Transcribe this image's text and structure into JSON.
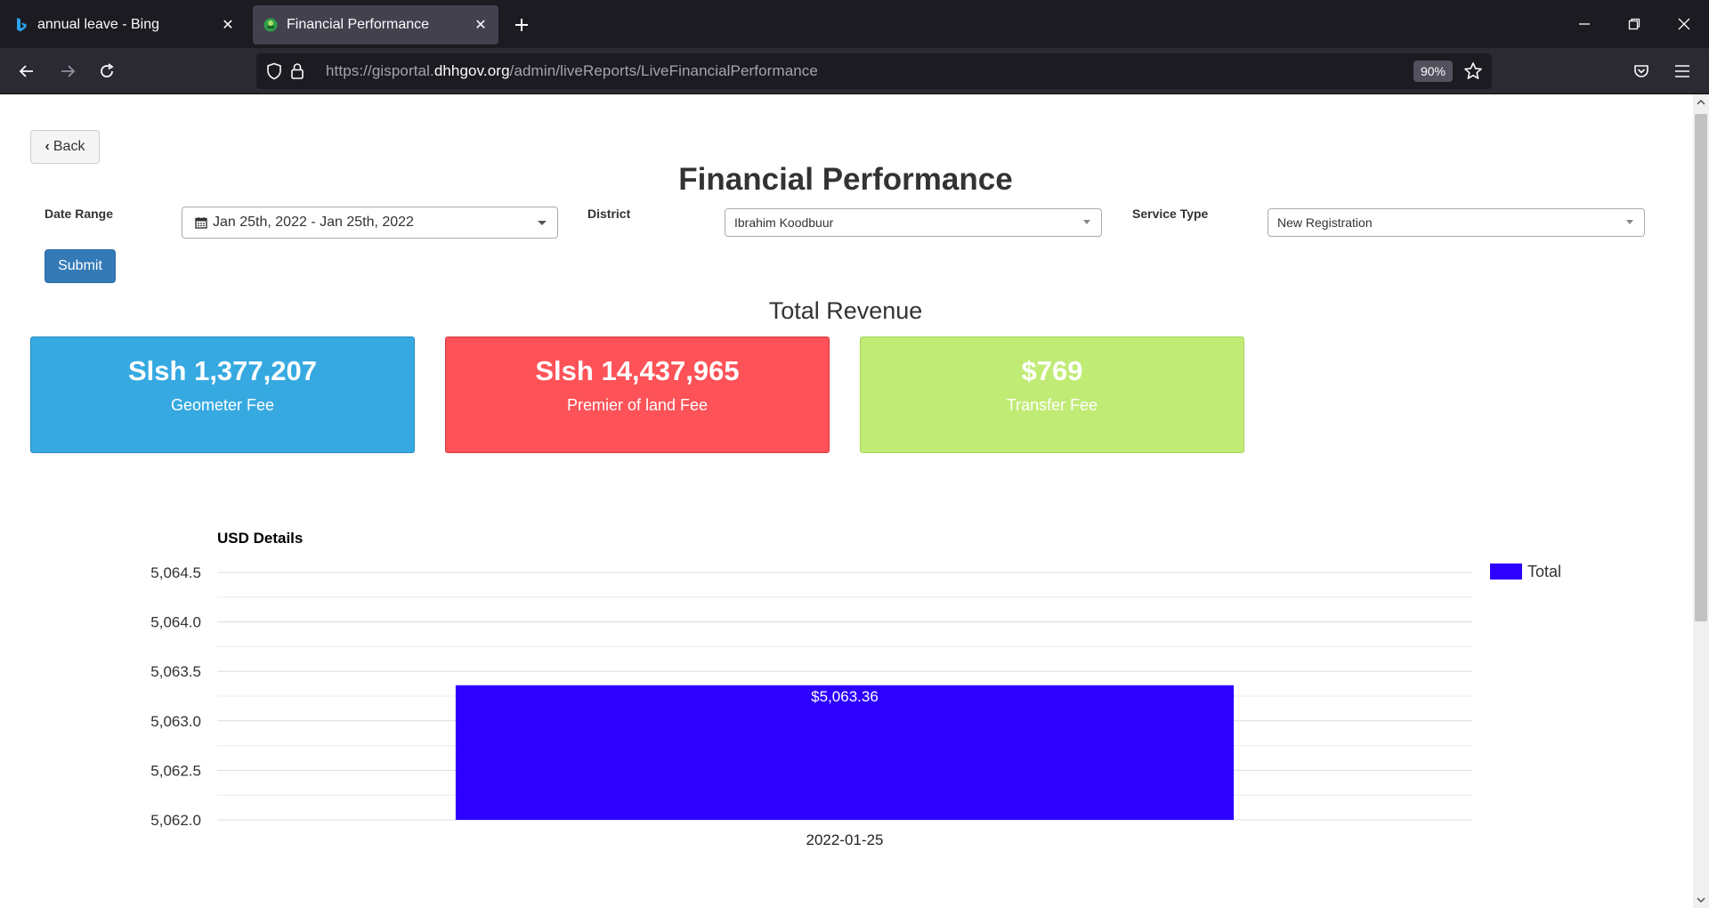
{
  "browser": {
    "tabs": [
      {
        "title": "annual leave - Bing",
        "favicon": "bing-icon",
        "active": false
      },
      {
        "title": "Financial Performance",
        "favicon": "site-icon",
        "active": true
      }
    ],
    "url": {
      "scheme": "https://gisportal.",
      "domain": "dhhgov.org",
      "path": "/admin/liveReports/LiveFinancialPerformance"
    },
    "zoom": "90%"
  },
  "page": {
    "back_label": "Back",
    "title": "Financial Performance",
    "filters": {
      "date_range_label": "Date Range",
      "date_range_value": "Jan 25th, 2022 - Jan 25th, 2022",
      "district_label": "District",
      "district_value": "Ibrahim Koodbuur",
      "service_type_label": "Service Type",
      "service_type_value": "New Registration"
    },
    "submit_label": "Submit",
    "total_revenue_title": "Total Revenue",
    "cards": [
      {
        "amount": "Slsh 1,377,207",
        "caption": "Geometer Fee",
        "color": "#36a9e1"
      },
      {
        "amount": "Slsh 14,437,965",
        "caption": "Premier of land Fee",
        "color": "#fd5257"
      },
      {
        "amount": "$769",
        "caption": "Transfer Fee",
        "color": "#c0eb75"
      }
    ]
  },
  "chart_data": {
    "type": "bar",
    "title": "USD Details",
    "categories": [
      "2022-01-25"
    ],
    "series": [
      {
        "name": "Total",
        "values": [
          5063.36
        ],
        "color": "#2d00ff"
      }
    ],
    "data_labels": [
      "$5,063.36"
    ],
    "ylim": [
      5062.0,
      5064.5
    ],
    "y_ticks": [
      5062.0,
      5062.5,
      5063.0,
      5063.5,
      5064.0,
      5064.5
    ],
    "y_tick_labels": [
      "5,062.0",
      "5,062.5",
      "5,063.0",
      "5,063.5",
      "5,064.0",
      "5,064.5"
    ],
    "grid": true,
    "legend": "right"
  }
}
